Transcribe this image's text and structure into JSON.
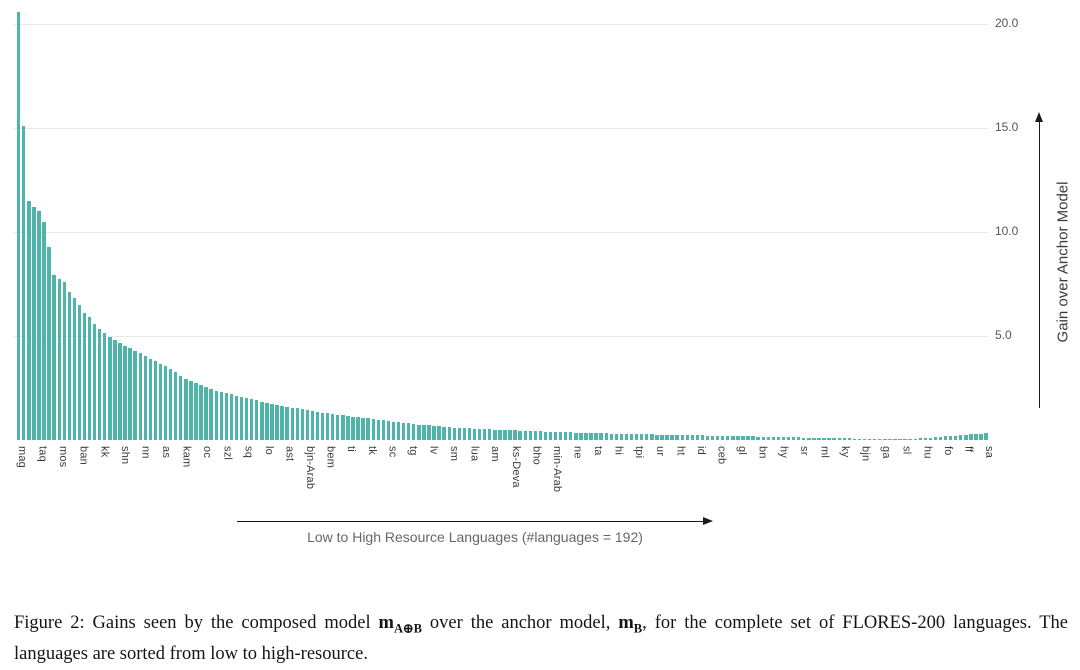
{
  "chart_data": {
    "type": "bar",
    "title": "",
    "ylabel": "Gain over Anchor Model",
    "xlabel": "Low to High Resource Languages (#languages = 192)",
    "ylim": [
      0,
      20.7
    ],
    "grid": true,
    "legend": "none",
    "bar_color": "#4fb5ab",
    "n_bars": 192,
    "xtick_label_every": 4,
    "yticks": [
      20.0,
      15.0,
      10.0,
      5.0
    ],
    "ytick_labels": [
      "20.0",
      "15.0",
      "10.0",
      "5.0"
    ],
    "xtick_labels": [
      "mag",
      "taq",
      "mos",
      "ban",
      "kk",
      "shn",
      "nn",
      "as",
      "kam",
      "oc",
      "szl",
      "sq",
      "lo",
      "ast",
      "bjn-Arab",
      "bem",
      "ti",
      "tk",
      "sc",
      "tg",
      "lv",
      "sm",
      "lua",
      "am",
      "ks-Deva",
      "bho",
      "min-Arab",
      "ne",
      "ta",
      "hi",
      "tpi",
      "ur",
      "ht",
      "id",
      "ceb",
      "gl",
      "bn",
      "hy",
      "sr",
      "ml",
      "ky",
      "bjn",
      "ga",
      "sl",
      "hu",
      "fo",
      "ff",
      "sa"
    ],
    "values": [
      20.6,
      15.1,
      11.5,
      11.2,
      11.0,
      10.5,
      9.3,
      7.95,
      7.75,
      7.6,
      7.1,
      6.85,
      6.5,
      6.1,
      5.9,
      5.6,
      5.35,
      5.15,
      4.95,
      4.8,
      4.65,
      4.5,
      4.4,
      4.3,
      4.2,
      4.05,
      3.9,
      3.8,
      3.65,
      3.55,
      3.4,
      3.25,
      3.1,
      2.95,
      2.85,
      2.75,
      2.65,
      2.55,
      2.45,
      2.35,
      2.3,
      2.25,
      2.2,
      2.1,
      2.05,
      2.0,
      1.95,
      1.9,
      1.85,
      1.8,
      1.75,
      1.7,
      1.65,
      1.6,
      1.56,
      1.52,
      1.48,
      1.44,
      1.4,
      1.36,
      1.32,
      1.28,
      1.25,
      1.22,
      1.19,
      1.16,
      1.13,
      1.1,
      1.07,
      1.04,
      1.01,
      0.98,
      0.95,
      0.92,
      0.89,
      0.86,
      0.83,
      0.8,
      0.77,
      0.74,
      0.72,
      0.7,
      0.68,
      0.66,
      0.64,
      0.62,
      0.6,
      0.59,
      0.57,
      0.56,
      0.55,
      0.53,
      0.52,
      0.51,
      0.5,
      0.49,
      0.48,
      0.47,
      0.46,
      0.45,
      0.44,
      0.43,
      0.42,
      0.41,
      0.4,
      0.4,
      0.39,
      0.38,
      0.37,
      0.37,
      0.36,
      0.35,
      0.35,
      0.34,
      0.33,
      0.33,
      0.32,
      0.31,
      0.31,
      0.3,
      0.3,
      0.29,
      0.29,
      0.28,
      0.27,
      0.27,
      0.26,
      0.26,
      0.25,
      0.25,
      0.24,
      0.24,
      0.23,
      0.23,
      0.22,
      0.22,
      0.21,
      0.21,
      0.2,
      0.2,
      0.19,
      0.19,
      0.18,
      0.18,
      0.17,
      0.17,
      0.16,
      0.16,
      0.15,
      0.15,
      0.15,
      0.14,
      0.14,
      0.13,
      0.13,
      0.12,
      0.12,
      0.11,
      0.11,
      0.1,
      0.1,
      0.09,
      0.09,
      0.08,
      0.08,
      0.07,
      0.07,
      0.06,
      0.06,
      0.05,
      0.05,
      0.04,
      0.04,
      0.04,
      0.05,
      0.05,
      0.06,
      0.07,
      0.08,
      0.1,
      0.12,
      0.13,
      0.15,
      0.17,
      0.19,
      0.21,
      0.23,
      0.25,
      0.27,
      0.29,
      0.31,
      0.33
    ],
    "annotations": {
      "y_axis_arrow": "upward arrow right of plot",
      "x_axis_arrow": "rightward arrow below tick labels"
    }
  },
  "figure": {
    "caption": {
      "prefix": "Figure 2: Gains seen by the composed model ",
      "m1": "m",
      "sub1": "A⊕B",
      "middle": " over the anchor model, ",
      "m2": "m",
      "sub2": "B",
      "suffix": ", for the complete set of FLORES-200 languages. The languages are sorted from low to high-resource."
    }
  },
  "colors": {
    "bar": "#4fb5ab",
    "gridline": "#e7e7e7",
    "ytick_text": "#545454",
    "xtick_text": "#3c3c3c",
    "axis_arrow": "#1a1a1a",
    "x_title_text": "#666666",
    "background": "#ffffff"
  }
}
